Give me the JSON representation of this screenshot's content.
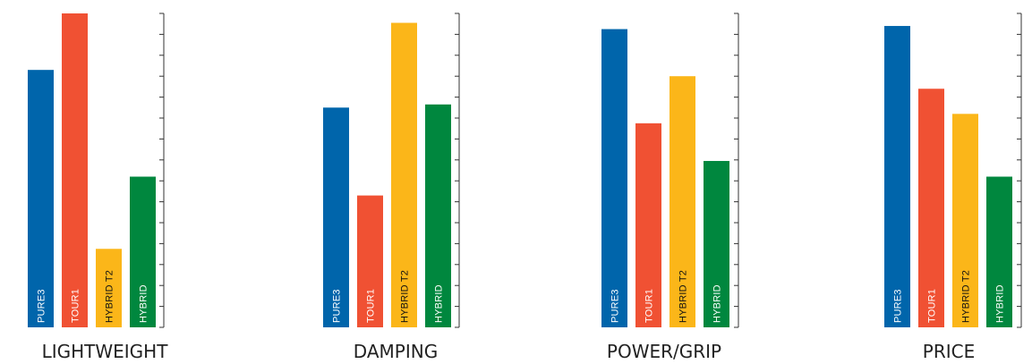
{
  "chart_data": [
    {
      "type": "bar",
      "title": "LIGHTWEIGHT",
      "categories": [
        "PURE3",
        "TOUR1",
        "HYBRID T2",
        "HYBRID"
      ],
      "values": [
        8.2,
        10,
        2.5,
        4.8
      ],
      "ylim": [
        0,
        10
      ],
      "grid": false
    },
    {
      "type": "bar",
      "title": "DAMPING",
      "categories": [
        "PURE3",
        "TOUR1",
        "HYBRID T2",
        "HYBRID"
      ],
      "values": [
        7,
        4.2,
        9.7,
        7.1
      ],
      "ylim": [
        0,
        10
      ],
      "grid": false
    },
    {
      "type": "bar",
      "title": "POWER/GRIP",
      "categories": [
        "PURE3",
        "TOUR1",
        "HYBRID T2",
        "HYBRID"
      ],
      "values": [
        9.5,
        6.5,
        8,
        5.3
      ],
      "ylim": [
        0,
        10
      ],
      "grid": false
    },
    {
      "type": "bar",
      "title": "PRICE",
      "categories": [
        "PURE3",
        "TOUR1",
        "HYBRID T2",
        "HYBRID"
      ],
      "values": [
        9.6,
        7.6,
        6.8,
        4.8
      ],
      "ylim": [
        0,
        10
      ],
      "grid": false
    }
  ],
  "colors": {
    "PURE3": "#0065ab",
    "TOUR1": "#f05133",
    "HYBRID T2": "#fbb619",
    "HYBRID": "#00873e"
  },
  "label_colors": {
    "PURE3": "#ffffff",
    "TOUR1": "#ffffff",
    "HYBRID T2": "#111111",
    "HYBRID": "#ffffff"
  }
}
